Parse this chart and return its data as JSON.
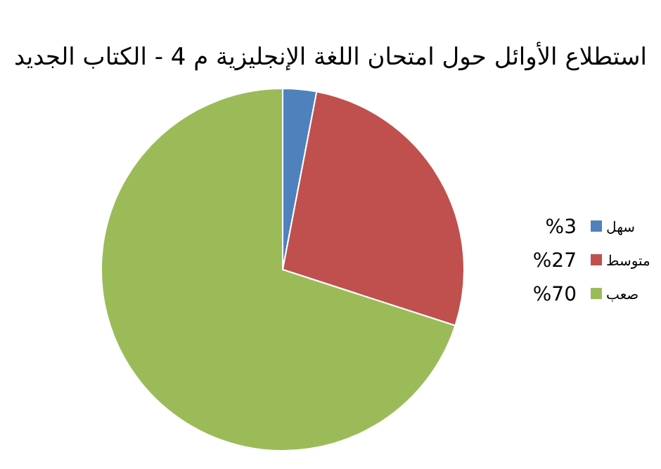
{
  "chart_data": {
    "type": "pie",
    "title": "استطلاع الأوائل حول امتحان اللغة الإنجليزية م 4 - الكتاب الجديد",
    "categories": [
      "سهل",
      "متوسط",
      "صعب"
    ],
    "values": [
      3,
      27,
      70
    ],
    "value_labels": [
      "%3",
      "%27",
      "%70"
    ],
    "colors": [
      "#4f81bd",
      "#c0504d",
      "#9bbb59"
    ],
    "legend": "right"
  }
}
